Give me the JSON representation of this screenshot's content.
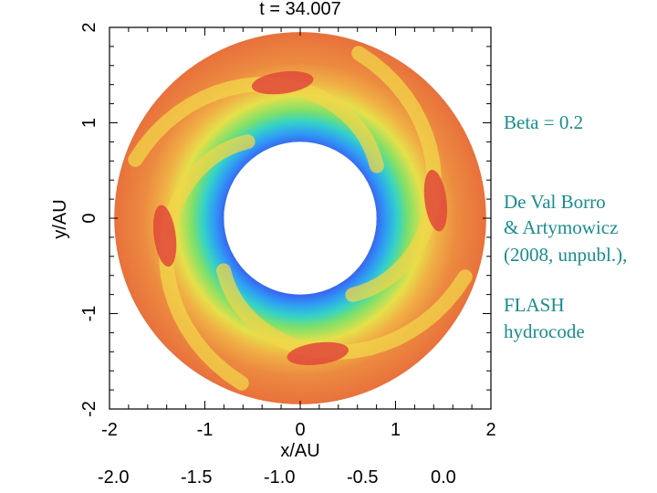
{
  "chart_data": {
    "type": "heatmap",
    "title": "t = 34.007",
    "xlabel": "x/AU",
    "ylabel": "y/AU",
    "xlim": [
      -2,
      2
    ],
    "ylim": [
      -2,
      2
    ],
    "xticks": [
      "-2",
      "-1",
      "0",
      "1",
      "2"
    ],
    "yticks": [
      "-2",
      "-1",
      "0",
      "1",
      "2"
    ],
    "disk": {
      "inner_radius": 0.8,
      "outer_radius": 1.95
    },
    "colormap": [
      "#3a5ff0",
      "#2f9cf5",
      "#33d2c8",
      "#66e07a",
      "#c9e84a",
      "#f0d448",
      "#f0a040",
      "#e86a3a",
      "#e04a3a"
    ],
    "description_values": {
      "vortex_count": 4
    }
  },
  "annotations": {
    "beta": "Beta = 0.2",
    "credit_line1": "De Val Borro",
    "credit_line2": "& Artymowicz",
    "credit_line3": "(2008, unpubl.),",
    "code_line1": "FLASH",
    "code_line2": "hydrocode"
  },
  "bottom_axis": {
    "ticks": [
      "-2.0",
      "-1.5",
      "-1.0",
      "-0.5",
      "0.0"
    ]
  }
}
